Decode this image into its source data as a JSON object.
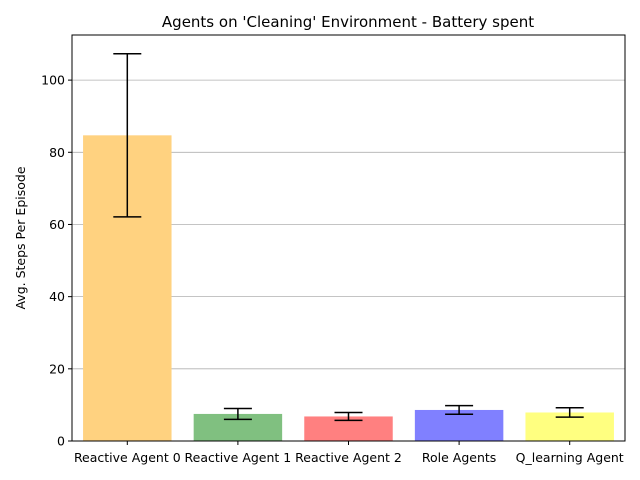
{
  "chart_data": {
    "type": "bar",
    "title": "Agents on 'Cleaning' Environment - Battery spent",
    "xlabel": "",
    "ylabel": "Avg. Steps Per Episode",
    "ylim": [
      0,
      112.5
    ],
    "yticks": [
      0,
      20,
      40,
      60,
      80,
      100
    ],
    "grid": "horizontal",
    "categories": [
      "Reactive Agent 0",
      "Reactive Agent 1",
      "Reactive Agent 2",
      "Role Agents",
      "Q_learning Agent"
    ],
    "values": [
      84.7,
      7.5,
      6.8,
      8.6,
      7.9
    ],
    "errors": [
      22.6,
      1.5,
      1.1,
      1.2,
      1.3
    ],
    "colors": [
      "#ffd280",
      "#80c080",
      "#ff8080",
      "#8080ff",
      "#ffff80"
    ]
  }
}
